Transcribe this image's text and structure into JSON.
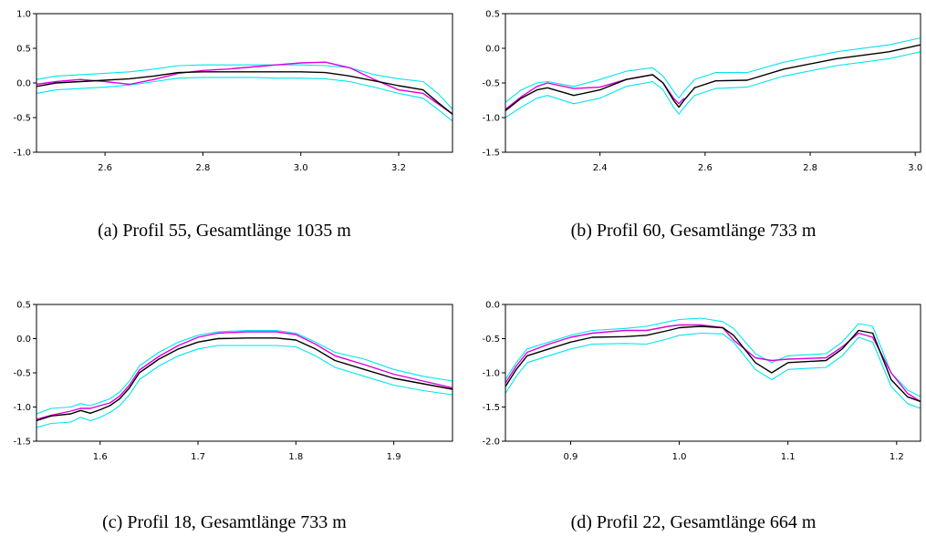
{
  "colors": {
    "mean": "#000000",
    "band": "#00e5ee",
    "measured": "#dd00dd",
    "axis": "#000000"
  },
  "captions": [
    "(a) Profil 55, Gesamtlänge 1035 m",
    "(b) Profil 60, Gesamtlänge 733 m",
    "(c) Profil 18, Gesamtlänge 733 m",
    "(d) Profil 22, Gesamtlänge 664 m"
  ],
  "chart_data": [
    {
      "type": "line",
      "title": "",
      "xlabel": "",
      "ylabel": "",
      "xlim": [
        2.46,
        3.31
      ],
      "ylim": [
        -1.0,
        1.0
      ],
      "xticks": [
        2.6,
        2.8,
        3.0,
        3.2
      ],
      "yticks": [
        -1.0,
        -0.5,
        0.0,
        0.5,
        1.0
      ],
      "grid": false,
      "series": [
        {
          "role": "band",
          "x": [
            2.46,
            2.5,
            2.55,
            2.6,
            2.65,
            2.7,
            2.75,
            2.8,
            2.85,
            2.9,
            2.95,
            3.0,
            3.05,
            3.1,
            3.15,
            3.2,
            3.25,
            3.28,
            3.31
          ],
          "y": [
            0.05,
            0.1,
            0.12,
            0.14,
            0.16,
            0.2,
            0.25,
            0.26,
            0.26,
            0.26,
            0.26,
            0.26,
            0.25,
            0.22,
            0.12,
            0.06,
            0.02,
            -0.15,
            -0.38
          ]
        },
        {
          "role": "band",
          "x": [
            2.46,
            2.5,
            2.55,
            2.6,
            2.65,
            2.7,
            2.75,
            2.8,
            2.85,
            2.9,
            2.95,
            3.0,
            3.05,
            3.1,
            3.15,
            3.2,
            3.25,
            3.28,
            3.31
          ],
          "y": [
            -0.15,
            -0.1,
            -0.08,
            -0.06,
            -0.03,
            0.02,
            0.07,
            0.08,
            0.08,
            0.08,
            0.07,
            0.07,
            0.06,
            0.02,
            -0.06,
            -0.15,
            -0.22,
            -0.38,
            -0.55
          ]
        },
        {
          "role": "mean",
          "x": [
            2.46,
            2.5,
            2.55,
            2.6,
            2.65,
            2.7,
            2.75,
            2.8,
            2.85,
            2.9,
            2.95,
            3.0,
            3.05,
            3.1,
            3.15,
            3.2,
            3.25,
            3.28,
            3.31
          ],
          "y": [
            -0.05,
            0.0,
            0.02,
            0.04,
            0.06,
            0.1,
            0.15,
            0.16,
            0.16,
            0.16,
            0.16,
            0.16,
            0.15,
            0.1,
            0.03,
            -0.04,
            -0.1,
            -0.28,
            -0.45
          ]
        },
        {
          "role": "measured",
          "x": [
            2.46,
            2.5,
            2.55,
            2.6,
            2.65,
            2.7,
            2.75,
            2.8,
            2.85,
            2.9,
            2.95,
            3.0,
            3.05,
            3.1,
            3.15,
            3.2,
            3.25,
            3.28,
            3.31
          ],
          "y": [
            -0.02,
            0.02,
            0.05,
            0.02,
            -0.02,
            0.05,
            0.14,
            0.18,
            0.2,
            0.23,
            0.26,
            0.29,
            0.3,
            0.22,
            0.05,
            -0.1,
            -0.15,
            -0.3,
            -0.45
          ]
        }
      ]
    },
    {
      "type": "line",
      "title": "",
      "xlabel": "",
      "ylabel": "",
      "xlim": [
        2.22,
        3.01
      ],
      "ylim": [
        -1.5,
        0.5
      ],
      "xticks": [
        2.4,
        2.6,
        2.8,
        3.0
      ],
      "yticks": [
        -1.5,
        -1.0,
        -0.5,
        0.0,
        0.5
      ],
      "grid": false,
      "series": [
        {
          "role": "band",
          "x": [
            2.22,
            2.25,
            2.28,
            2.3,
            2.35,
            2.4,
            2.45,
            2.5,
            2.52,
            2.54,
            2.55,
            2.56,
            2.58,
            2.62,
            2.68,
            2.75,
            2.85,
            2.95,
            3.01
          ],
          "y": [
            -0.78,
            -0.6,
            -0.5,
            -0.48,
            -0.55,
            -0.45,
            -0.33,
            -0.28,
            -0.4,
            -0.62,
            -0.72,
            -0.62,
            -0.45,
            -0.35,
            -0.35,
            -0.2,
            -0.05,
            0.05,
            0.15
          ]
        },
        {
          "role": "band",
          "x": [
            2.22,
            2.25,
            2.28,
            2.3,
            2.35,
            2.4,
            2.45,
            2.5,
            2.52,
            2.54,
            2.55,
            2.56,
            2.58,
            2.62,
            2.68,
            2.75,
            2.85,
            2.95,
            3.01
          ],
          "y": [
            -1.0,
            -0.85,
            -0.72,
            -0.68,
            -0.8,
            -0.72,
            -0.55,
            -0.48,
            -0.6,
            -0.85,
            -0.95,
            -0.85,
            -0.68,
            -0.58,
            -0.56,
            -0.4,
            -0.25,
            -0.15,
            -0.05
          ]
        },
        {
          "role": "mean",
          "x": [
            2.22,
            2.25,
            2.28,
            2.3,
            2.35,
            2.4,
            2.45,
            2.5,
            2.52,
            2.54,
            2.55,
            2.56,
            2.58,
            2.62,
            2.68,
            2.75,
            2.85,
            2.95,
            3.01
          ],
          "y": [
            -0.9,
            -0.72,
            -0.6,
            -0.57,
            -0.68,
            -0.6,
            -0.45,
            -0.38,
            -0.5,
            -0.75,
            -0.85,
            -0.75,
            -0.57,
            -0.47,
            -0.46,
            -0.3,
            -0.15,
            -0.05,
            0.05
          ]
        },
        {
          "role": "measured",
          "x": [
            2.22,
            2.25,
            2.28,
            2.3,
            2.35,
            2.4,
            2.45,
            2.5,
            2.52,
            2.54,
            2.55,
            2.56
          ],
          "y": [
            -0.88,
            -0.7,
            -0.55,
            -0.5,
            -0.58,
            -0.56,
            -0.45,
            -0.38,
            -0.5,
            -0.72,
            -0.8,
            -0.72
          ]
        }
      ]
    },
    {
      "type": "line",
      "title": "",
      "xlabel": "",
      "ylabel": "",
      "xlim": [
        1.535,
        1.96
      ],
      "ylim": [
        -1.5,
        0.5
      ],
      "xticks": [
        1.6,
        1.7,
        1.8,
        1.9
      ],
      "yticks": [
        -1.5,
        -1.0,
        -0.5,
        0.0,
        0.5
      ],
      "grid": false,
      "series": [
        {
          "role": "band",
          "x": [
            1.535,
            1.55,
            1.57,
            1.58,
            1.59,
            1.6,
            1.61,
            1.62,
            1.63,
            1.64,
            1.66,
            1.68,
            1.7,
            1.72,
            1.75,
            1.78,
            1.8,
            1.82,
            1.84,
            1.87,
            1.9,
            1.93,
            1.96
          ],
          "y": [
            -1.1,
            -1.02,
            -1.0,
            -0.95,
            -0.98,
            -0.93,
            -0.88,
            -0.78,
            -0.62,
            -0.4,
            -0.2,
            -0.05,
            0.05,
            0.1,
            0.12,
            0.12,
            0.08,
            -0.05,
            -0.2,
            -0.3,
            -0.45,
            -0.55,
            -0.62
          ]
        },
        {
          "role": "band",
          "x": [
            1.535,
            1.55,
            1.57,
            1.58,
            1.59,
            1.6,
            1.61,
            1.62,
            1.63,
            1.64,
            1.66,
            1.68,
            1.7,
            1.72,
            1.75,
            1.78,
            1.8,
            1.82,
            1.84,
            1.87,
            1.9,
            1.93,
            1.96
          ],
          "y": [
            -1.3,
            -1.24,
            -1.22,
            -1.15,
            -1.2,
            -1.15,
            -1.08,
            -0.98,
            -0.82,
            -0.6,
            -0.4,
            -0.25,
            -0.15,
            -0.1,
            -0.1,
            -0.1,
            -0.12,
            -0.25,
            -0.42,
            -0.55,
            -0.68,
            -0.76,
            -0.82
          ]
        },
        {
          "role": "mean",
          "x": [
            1.535,
            1.55,
            1.57,
            1.58,
            1.59,
            1.6,
            1.61,
            1.62,
            1.63,
            1.64,
            1.66,
            1.68,
            1.7,
            1.72,
            1.75,
            1.78,
            1.8,
            1.82,
            1.84,
            1.87,
            1.9,
            1.93,
            1.96
          ],
          "y": [
            -1.2,
            -1.13,
            -1.1,
            -1.05,
            -1.09,
            -1.04,
            -0.98,
            -0.88,
            -0.72,
            -0.5,
            -0.3,
            -0.15,
            -0.05,
            0.0,
            0.01,
            0.01,
            -0.02,
            -0.15,
            -0.32,
            -0.45,
            -0.58,
            -0.66,
            -0.74
          ]
        },
        {
          "role": "measured",
          "x": [
            1.535,
            1.55,
            1.57,
            1.58,
            1.59,
            1.6,
            1.61,
            1.62,
            1.63,
            1.64,
            1.66,
            1.68,
            1.7,
            1.72,
            1.75,
            1.78,
            1.8,
            1.82,
            1.84,
            1.87,
            1.9,
            1.93,
            1.96
          ],
          "y": [
            -1.18,
            -1.12,
            -1.06,
            -1.02,
            -1.02,
            -0.98,
            -0.94,
            -0.84,
            -0.68,
            -0.46,
            -0.26,
            -0.1,
            0.02,
            0.08,
            0.1,
            0.1,
            0.06,
            -0.08,
            -0.25,
            -0.38,
            -0.52,
            -0.62,
            -0.72
          ]
        }
      ]
    },
    {
      "type": "line",
      "title": "",
      "xlabel": "",
      "ylabel": "",
      "xlim": [
        0.84,
        1.222
      ],
      "ylim": [
        -2.0,
        0.0
      ],
      "xticks": [
        0.9,
        1.0,
        1.1,
        1.2
      ],
      "yticks": [
        -2.0,
        -1.5,
        -1.0,
        -0.5,
        0.0
      ],
      "grid": false,
      "series": [
        {
          "role": "band",
          "x": [
            0.84,
            0.85,
            0.86,
            0.88,
            0.9,
            0.92,
            0.95,
            0.97,
            0.99,
            1.0,
            1.02,
            1.04,
            1.05,
            1.07,
            1.085,
            1.1,
            1.135,
            1.15,
            1.165,
            1.178,
            1.195,
            1.21,
            1.222
          ],
          "y": [
            -1.1,
            -0.85,
            -0.65,
            -0.55,
            -0.45,
            -0.38,
            -0.35,
            -0.32,
            -0.25,
            -0.22,
            -0.2,
            -0.25,
            -0.35,
            -0.72,
            -0.85,
            -0.75,
            -0.72,
            -0.55,
            -0.28,
            -0.32,
            -1.0,
            -1.25,
            -1.35
          ]
        },
        {
          "role": "band",
          "x": [
            0.84,
            0.85,
            0.86,
            0.88,
            0.9,
            0.92,
            0.95,
            0.97,
            0.99,
            1.0,
            1.02,
            1.04,
            1.05,
            1.07,
            1.085,
            1.1,
            1.135,
            1.15,
            1.165,
            1.178,
            1.195,
            1.21,
            1.222
          ],
          "y": [
            -1.3,
            -1.05,
            -0.85,
            -0.75,
            -0.65,
            -0.58,
            -0.57,
            -0.58,
            -0.5,
            -0.45,
            -0.42,
            -0.43,
            -0.55,
            -0.95,
            -1.1,
            -0.95,
            -0.92,
            -0.75,
            -0.48,
            -0.55,
            -1.2,
            -1.45,
            -1.52
          ]
        },
        {
          "role": "mean",
          "x": [
            0.84,
            0.85,
            0.86,
            0.88,
            0.9,
            0.92,
            0.95,
            0.97,
            0.99,
            1.0,
            1.02,
            1.04,
            1.05,
            1.07,
            1.085,
            1.1,
            1.135,
            1.15,
            1.165,
            1.178,
            1.195,
            1.21,
            1.222
          ],
          "y": [
            -1.2,
            -0.95,
            -0.75,
            -0.65,
            -0.55,
            -0.48,
            -0.47,
            -0.45,
            -0.38,
            -0.34,
            -0.32,
            -0.34,
            -0.45,
            -0.85,
            -1.0,
            -0.85,
            -0.82,
            -0.65,
            -0.38,
            -0.42,
            -1.1,
            -1.35,
            -1.42
          ]
        },
        {
          "role": "measured",
          "x": [
            0.84,
            0.85,
            0.86,
            0.88,
            0.9,
            0.92,
            0.95,
            0.97,
            0.99,
            1.0,
            1.02,
            1.04,
            1.05,
            1.07,
            1.085,
            1.1,
            1.135,
            1.15,
            1.165,
            1.178,
            1.195,
            1.21,
            1.222
          ],
          "y": [
            -1.15,
            -0.9,
            -0.7,
            -0.58,
            -0.48,
            -0.42,
            -0.38,
            -0.38,
            -0.32,
            -0.3,
            -0.3,
            -0.34,
            -0.52,
            -0.78,
            -0.82,
            -0.8,
            -0.78,
            -0.62,
            -0.42,
            -0.48,
            -1.0,
            -1.3,
            -1.42
          ]
        }
      ]
    }
  ]
}
